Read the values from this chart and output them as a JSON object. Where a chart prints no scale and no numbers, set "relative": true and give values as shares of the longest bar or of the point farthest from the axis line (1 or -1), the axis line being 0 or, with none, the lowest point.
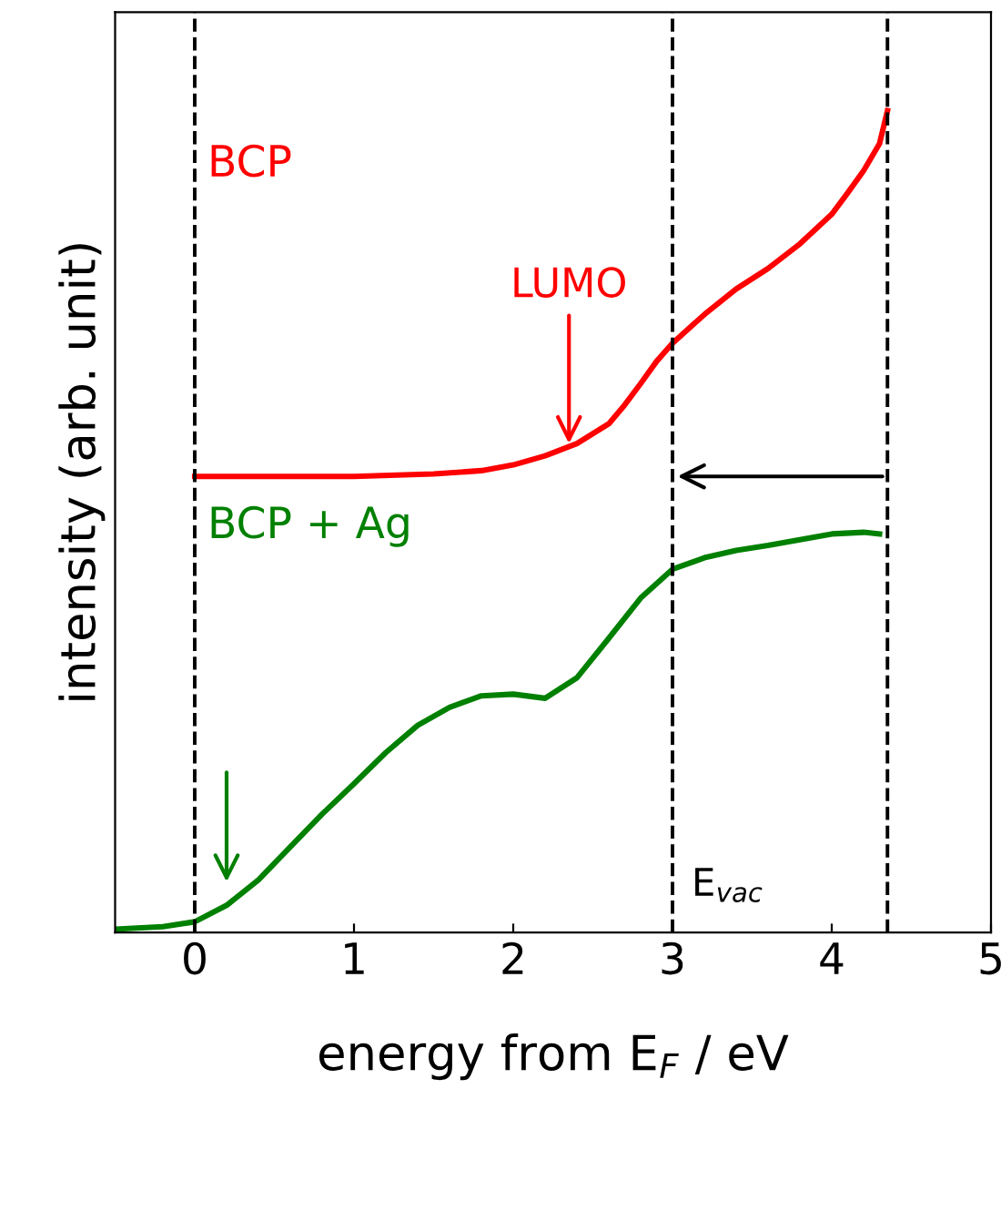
{
  "chart_data": {
    "type": "line",
    "relative": true,
    "xlabel": "energy from E$_{F}$ / eV",
    "ylabel": "intensity (arb. unit)",
    "xlim": [
      -0.5,
      5
    ],
    "xticks": [
      0,
      1,
      2,
      3,
      4,
      5
    ],
    "tick_labels": "x",
    "grid": false,
    "legend": false,
    "marker": "none",
    "line_style": "solid",
    "series": [
      {
        "name": "BCP",
        "color": "#ff0000",
        "x": [
          0,
          0.5,
          1.0,
          1.5,
          1.8,
          2.0,
          2.2,
          2.4,
          2.6,
          2.7,
          2.8,
          2.9,
          3.0,
          3.2,
          3.4,
          3.6,
          3.8,
          4.0,
          4.1,
          4.2,
          4.3,
          4.35
        ],
        "values": [
          0.555,
          0.555,
          0.555,
          0.558,
          0.562,
          0.569,
          0.58,
          0.595,
          0.619,
          0.642,
          0.668,
          0.695,
          0.717,
          0.752,
          0.783,
          0.808,
          0.838,
          0.874,
          0.9,
          0.927,
          0.96,
          1.0
        ]
      },
      {
        "name": "BCP + Ag",
        "color": "#008000",
        "x": [
          -0.5,
          -0.2,
          0,
          0.2,
          0.4,
          0.6,
          0.8,
          1.0,
          1.2,
          1.4,
          1.6,
          1.8,
          2.0,
          2.2,
          2.4,
          2.6,
          2.8,
          3.0,
          3.2,
          3.4,
          3.6,
          3.8,
          4.0,
          4.2,
          4.3
        ],
        "values": [
          0.004,
          0.007,
          0.013,
          0.033,
          0.064,
          0.104,
          0.144,
          0.181,
          0.219,
          0.252,
          0.274,
          0.288,
          0.29,
          0.285,
          0.31,
          0.358,
          0.407,
          0.442,
          0.456,
          0.465,
          0.471,
          0.478,
          0.485,
          0.487,
          0.485
        ]
      }
    ],
    "ref_lines": [
      {
        "axis": "x",
        "value": 0,
        "color": "#000000",
        "line_style": "dashed"
      },
      {
        "axis": "x",
        "value": 3,
        "label": "E$_{vac}$",
        "color": "#000000",
        "line_style": "dashed"
      },
      {
        "axis": "x",
        "value": 4.35,
        "color": "#000000",
        "line_style": "dashed"
      }
    ],
    "annotations": [
      {
        "text": "LUMO",
        "x": 2.35,
        "y": 0.595
      }
    ]
  }
}
